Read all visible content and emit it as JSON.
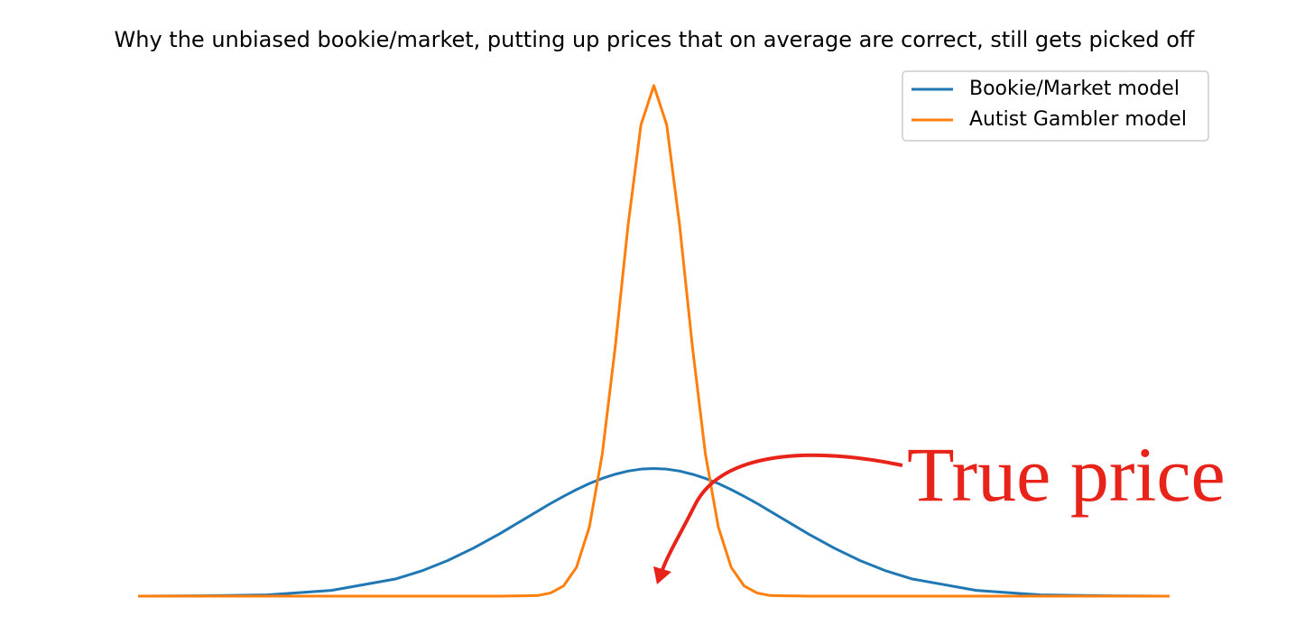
{
  "chart_data": {
    "type": "line",
    "title": "Why the unbiased bookie/market, putting up prices that on average are correct, still gets picked off",
    "annotation": "True price",
    "x": [
      -4,
      -3.5,
      -3,
      -2.5,
      -2,
      -1.8,
      -1.6,
      -1.4,
      -1.2,
      -1.0,
      -0.9,
      -0.8,
      -0.7,
      -0.6,
      -0.5,
      -0.4,
      -0.3,
      -0.2,
      -0.1,
      0,
      0.1,
      0.2,
      0.3,
      0.4,
      0.5,
      0.6,
      0.7,
      0.8,
      0.9,
      1.0,
      1.2,
      1.4,
      1.6,
      1.8,
      2,
      2.5,
      3,
      3.5,
      4
    ],
    "series": [
      {
        "name": "Bookie/Market model",
        "color": "#1f77b4",
        "values": [
          0.0,
          0.001,
          0.004,
          0.018,
          0.054,
          0.079,
          0.111,
          0.15,
          0.194,
          0.242,
          0.266,
          0.29,
          0.312,
          0.333,
          0.352,
          0.368,
          0.381,
          0.391,
          0.397,
          0.399,
          0.397,
          0.391,
          0.381,
          0.368,
          0.352,
          0.333,
          0.312,
          0.29,
          0.266,
          0.242,
          0.194,
          0.15,
          0.111,
          0.079,
          0.054,
          0.018,
          0.004,
          0.001,
          0.0
        ]
      },
      {
        "name": "Autist Gambler model",
        "color": "#ff7f0e",
        "values": [
          0,
          0,
          0,
          0,
          0,
          0,
          0,
          0,
          0,
          0.001,
          0.002,
          0.01,
          0.032,
          0.09,
          0.216,
          0.444,
          0.777,
          1.159,
          1.473,
          1.596,
          1.473,
          1.159,
          0.777,
          0.444,
          0.216,
          0.09,
          0.032,
          0.01,
          0.002,
          0.001,
          0,
          0,
          0,
          0,
          0,
          0,
          0,
          0,
          0
        ]
      }
    ],
    "xlim": [
      -4,
      4
    ],
    "ylim": [
      0,
      1.7
    ],
    "legend": "upper right"
  }
}
